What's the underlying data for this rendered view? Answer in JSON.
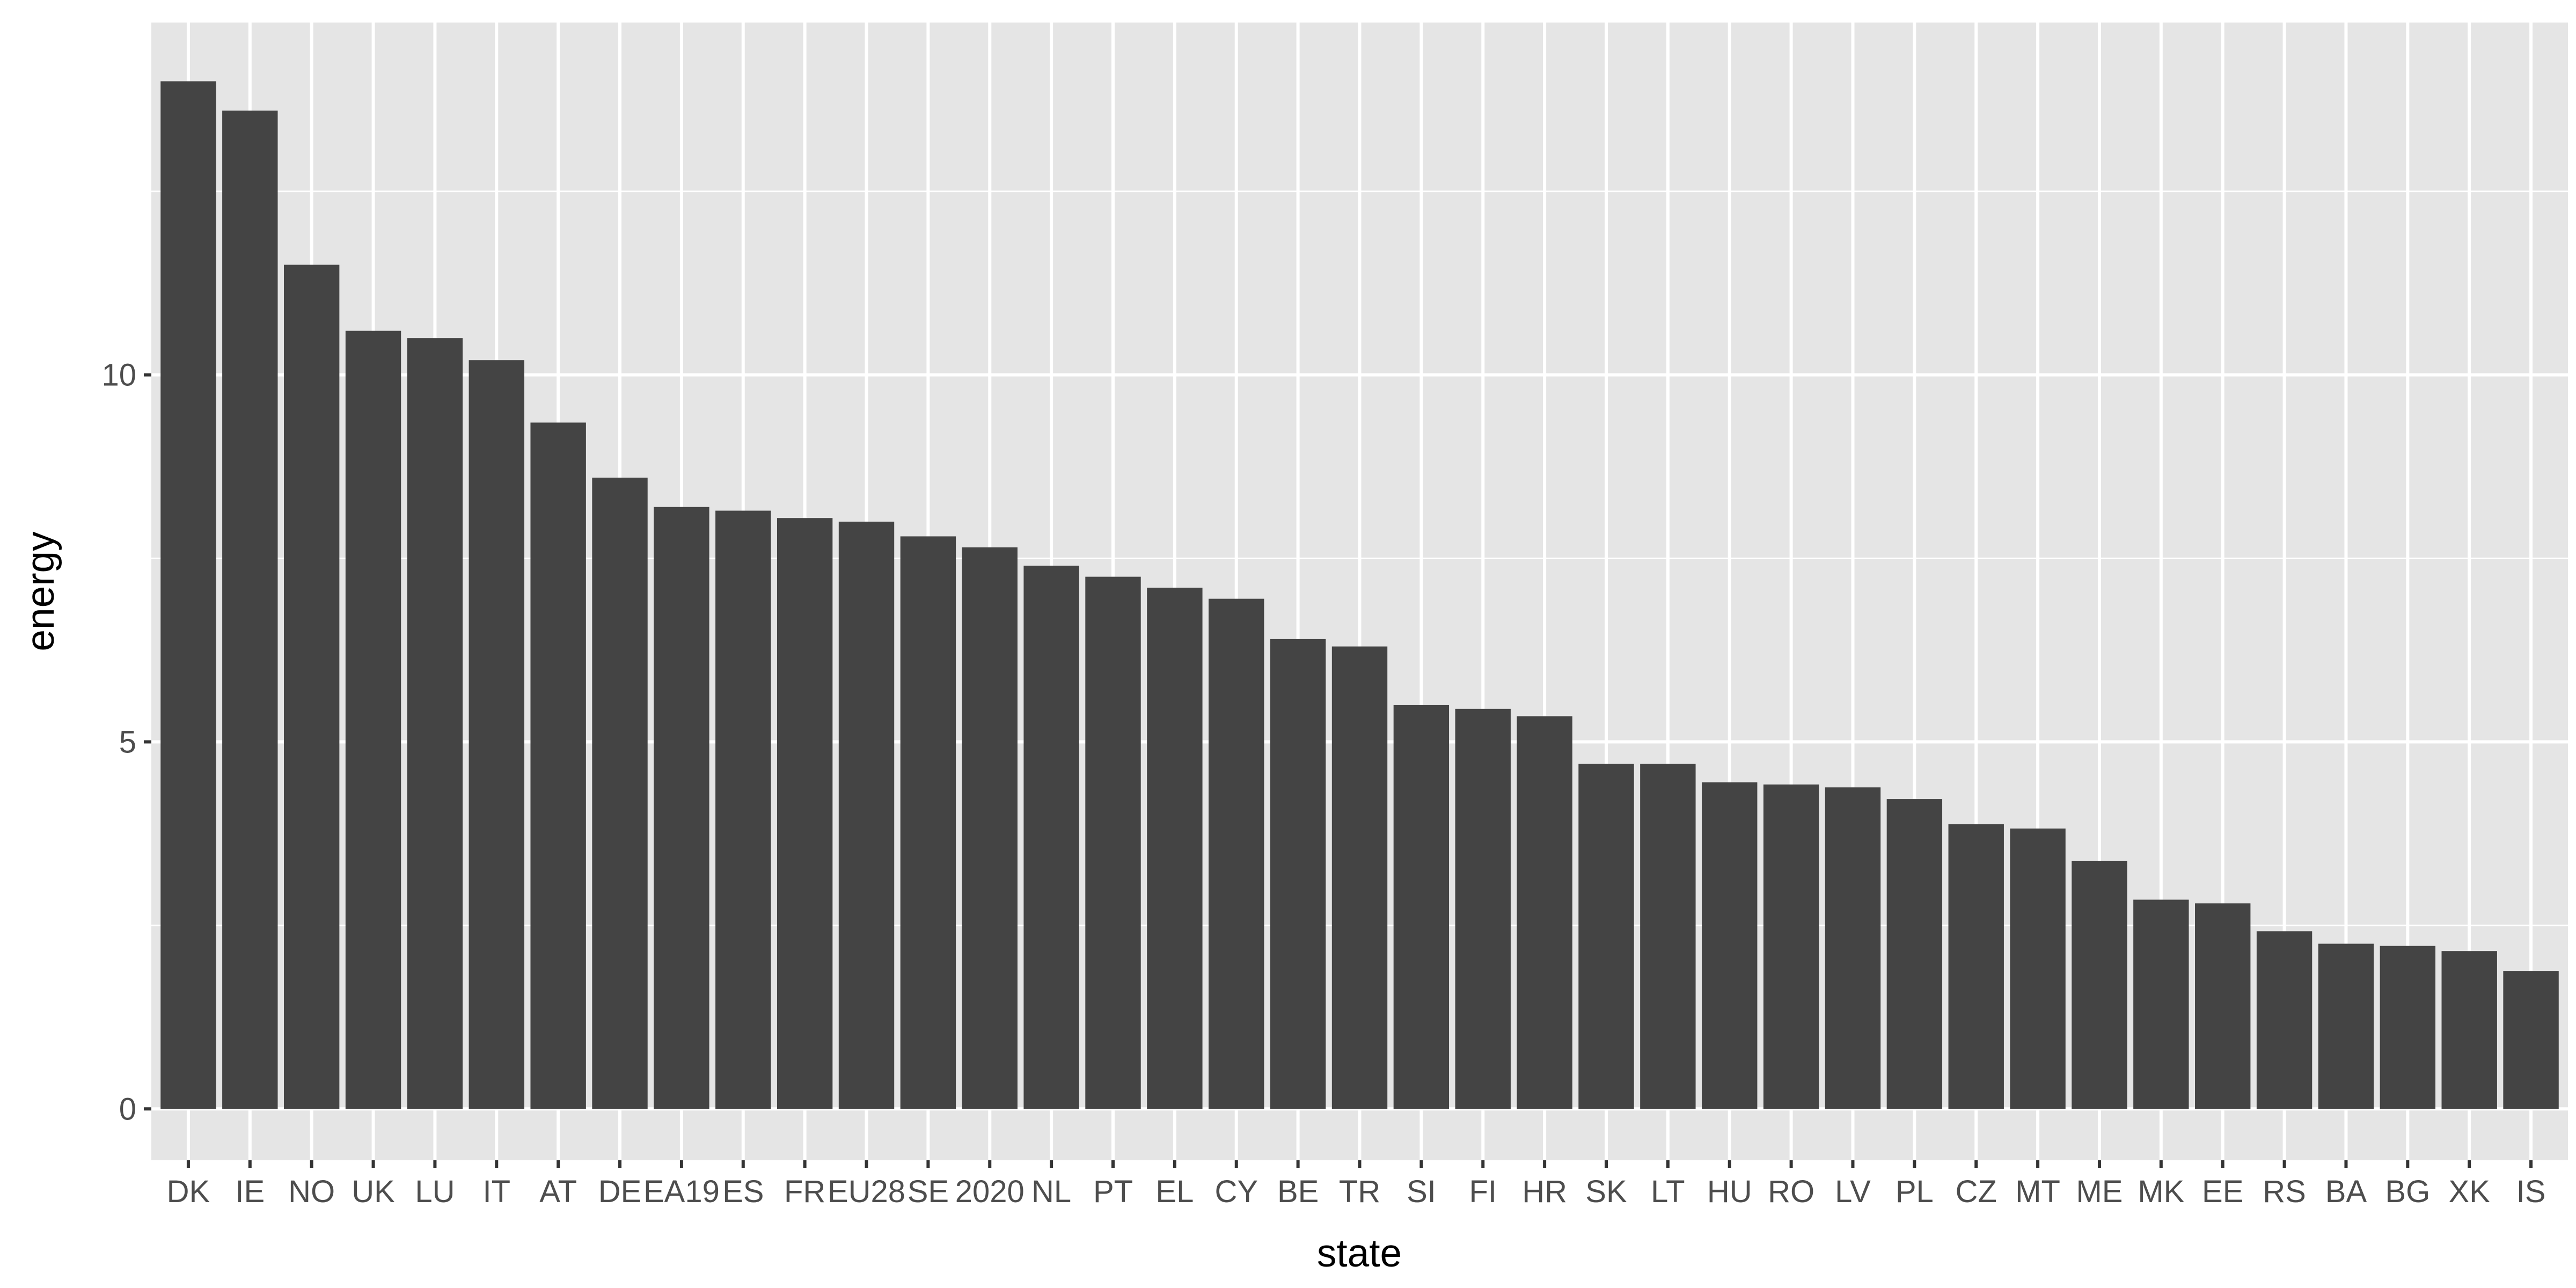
{
  "chart_data": {
    "type": "bar",
    "title": "",
    "xlabel": "state",
    "ylabel": "energy",
    "ylim": [
      -0.7,
      14.8
    ],
    "y_ticks": [
      0,
      5,
      10
    ],
    "grid": true,
    "bar_color": "#444444",
    "panel_color": "#e5e5e5",
    "grid_color": "#ffffff",
    "categories": [
      "DK",
      "IE",
      "NO",
      "UK",
      "LU",
      "IT",
      "AT",
      "DE",
      "EA19",
      "ES",
      "FR",
      "EU28",
      "SE",
      "2020",
      "NL",
      "PT",
      "EL",
      "CY",
      "BE",
      "TR",
      "SI",
      "FI",
      "HR",
      "SK",
      "LT",
      "HU",
      "RO",
      "LV",
      "PL",
      "CZ",
      "MT",
      "ME",
      "MK",
      "EE",
      "RS",
      "BA",
      "BG",
      "XK",
      "IS"
    ],
    "values": [
      14.0,
      13.6,
      11.5,
      10.6,
      10.5,
      10.2,
      9.35,
      8.6,
      8.2,
      8.15,
      8.05,
      8.0,
      7.8,
      7.65,
      7.4,
      7.25,
      7.1,
      6.95,
      6.4,
      6.3,
      5.5,
      5.45,
      5.35,
      4.7,
      4.7,
      4.45,
      4.42,
      4.38,
      4.22,
      3.88,
      3.82,
      3.38,
      2.85,
      2.8,
      2.42,
      2.25,
      2.22,
      2.15,
      1.88
    ]
  }
}
